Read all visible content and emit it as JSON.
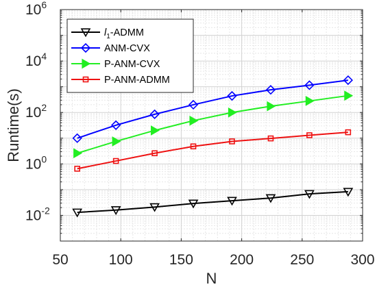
{
  "chart_data": {
    "type": "line",
    "xlabel": "N",
    "ylabel": "Runtime(s)",
    "xlim": [
      50,
      300
    ],
    "ylim": [
      0.001,
      1000000
    ],
    "yscale": "log",
    "grid": true,
    "legend_position": "top-left",
    "x": [
      64,
      96,
      128,
      160,
      192,
      224,
      256,
      288
    ],
    "x_tick_labels": [
      "50",
      "100",
      "150",
      "200",
      "250",
      "300"
    ],
    "y_tick_labels": [
      {
        "base": "10",
        "exp": "-2"
      },
      {
        "base": "10",
        "exp": "0"
      },
      {
        "base": "10",
        "exp": "2"
      },
      {
        "base": "10",
        "exp": "4"
      },
      {
        "base": "10",
        "exp": "6"
      }
    ],
    "series": [
      {
        "name": "l1-ADMM",
        "legend_italic": "l",
        "legend_sub": "1",
        "legend_rest": "-ADMM",
        "color": "#000000",
        "marker": "triangle-down",
        "values": [
          0.013,
          0.016,
          0.021,
          0.029,
          0.037,
          0.047,
          0.068,
          0.083
        ]
      },
      {
        "name": "ANM-CVX",
        "color": "#0000ff",
        "marker": "diamond",
        "values": [
          10,
          32,
          85,
          200,
          440,
          760,
          1150,
          1800
        ]
      },
      {
        "name": "P-ANM-CVX",
        "color": "#22ee22",
        "marker": "triangle-right",
        "values": [
          2.6,
          7.5,
          20,
          48,
          100,
          175,
          280,
          450
        ]
      },
      {
        "name": "P-ANM-ADMM",
        "color": "#ee1111",
        "marker": "square",
        "values": [
          0.65,
          1.3,
          2.6,
          4.8,
          7.5,
          9.8,
          13,
          17
        ]
      }
    ]
  }
}
